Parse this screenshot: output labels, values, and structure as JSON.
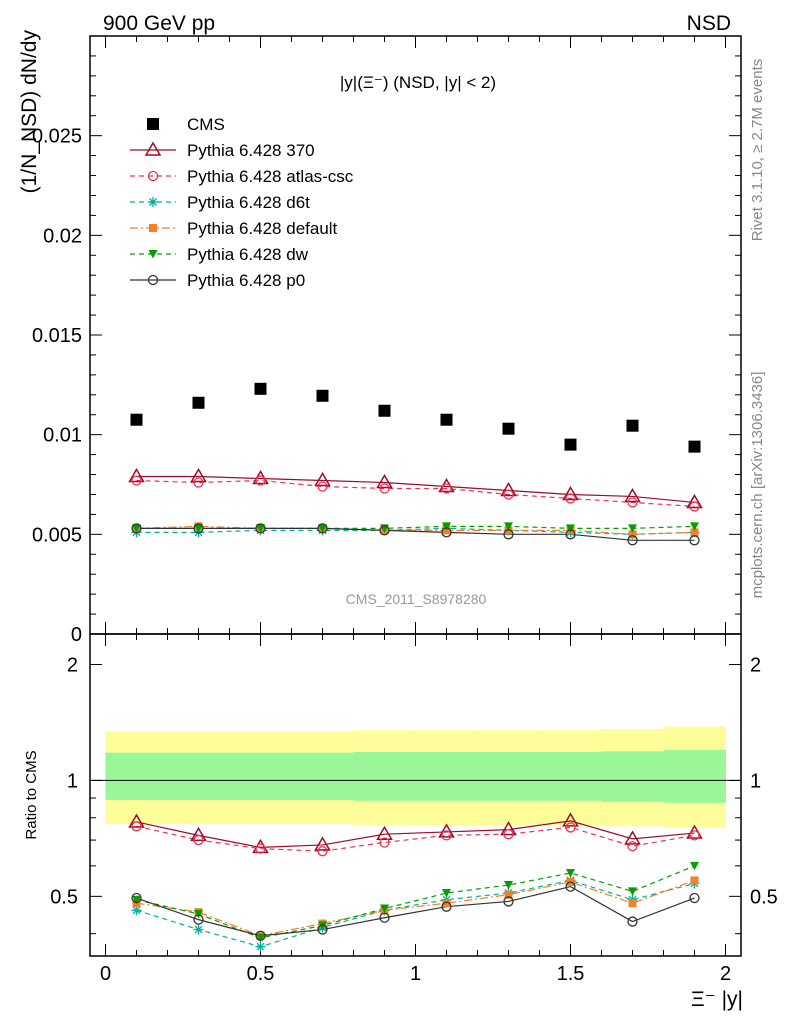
{
  "header": {
    "left_label": "900 GeV pp",
    "right_label": "NSD",
    "plot_title": "|y|(Ξ⁻) (NSD, |y| < 2)",
    "watermark": "CMS_2011_S8978280",
    "side_rivet": "Rivet 3.1.10, ≥ 2.7M events",
    "side_mcplots": "mcplots.cern.ch [arXiv:1306.3436]"
  },
  "axes": {
    "main_ylabel": "(1/N_NSD) dN/dy",
    "ratio_ylabel": "Ratio to CMS",
    "xlabel": "Ξ⁻ |y|",
    "main_yticks": [
      "0",
      "0.005",
      "0.01",
      "0.015",
      "0.02",
      "0.025"
    ],
    "ratio_yticks": [
      "0.5",
      "1",
      "2"
    ],
    "xticks": [
      "0",
      "0.5",
      "1",
      "1.5",
      "2"
    ]
  },
  "legend": [
    {
      "label": "CMS",
      "color": "#000000",
      "marker": "square-filled",
      "line": "none"
    },
    {
      "label": "Pythia 6.428 370",
      "color": "#9a0e2a",
      "marker": "triangle-open",
      "line": "solid"
    },
    {
      "label": "Pythia 6.428 atlas-csc",
      "color": "#ee3355",
      "marker": "circle-open",
      "line": "dashed"
    },
    {
      "label": "Pythia 6.428 d6t",
      "color": "#00b0a0",
      "marker": "asterisk",
      "line": "dashed"
    },
    {
      "label": "Pythia 6.428 default",
      "color": "#f58025",
      "marker": "square-filled",
      "line": "dashdot"
    },
    {
      "label": "Pythia 6.428 dw",
      "color": "#00a000",
      "marker": "triangle-down-filled",
      "line": "dashed"
    },
    {
      "label": "Pythia 6.428 p0",
      "color": "#333333",
      "marker": "circle-open",
      "line": "solid"
    }
  ],
  "chart_data": {
    "type": "scatter",
    "x": [
      0.1,
      0.3,
      0.5,
      0.7,
      0.9,
      1.1,
      1.3,
      1.5,
      1.7,
      1.9
    ],
    "xlim": [
      -0.05,
      2.05
    ],
    "main_ylim": [
      0,
      0.03
    ],
    "ratio_ylim": [
      0.35,
      2.4
    ],
    "ratio_scale": "log",
    "series": [
      {
        "name": "CMS",
        "values": [
          0.01075,
          0.0116,
          0.0123,
          0.01195,
          0.0112,
          0.01075,
          0.0103,
          0.0095,
          0.01045,
          0.0094
        ]
      },
      {
        "name": "Pythia 6.428 370",
        "values": [
          0.0079,
          0.0079,
          0.0078,
          0.0077,
          0.0076,
          0.0074,
          0.0072,
          0.007,
          0.0069,
          0.0066
        ]
      },
      {
        "name": "Pythia 6.428 atlas-csc",
        "values": [
          0.0077,
          0.0076,
          0.0077,
          0.0074,
          0.0073,
          0.0073,
          0.007,
          0.0068,
          0.0066,
          0.0064
        ]
      },
      {
        "name": "Pythia 6.428 d6t",
        "values": [
          0.0051,
          0.0051,
          0.0052,
          0.0052,
          0.0052,
          0.0053,
          0.0052,
          0.0051,
          0.005,
          0.0051
        ]
      },
      {
        "name": "Pythia 6.428 default",
        "values": [
          0.0053,
          0.0054,
          0.0053,
          0.0053,
          0.0052,
          0.0052,
          0.0052,
          0.0052,
          0.005,
          0.0051
        ]
      },
      {
        "name": "Pythia 6.428 dw",
        "values": [
          0.0053,
          0.0053,
          0.0053,
          0.0053,
          0.0053,
          0.0054,
          0.0054,
          0.0053,
          0.0053,
          0.0054
        ]
      },
      {
        "name": "Pythia 6.428 p0",
        "values": [
          0.0053,
          0.0053,
          0.0053,
          0.0053,
          0.0052,
          0.0051,
          0.005,
          0.005,
          0.0047,
          0.0047
        ]
      }
    ],
    "ratio_series": [
      {
        "name": "Pythia 6.428 370",
        "values": [
          0.78,
          0.72,
          0.67,
          0.68,
          0.725,
          0.735,
          0.745,
          0.785,
          0.705,
          0.73
        ]
      },
      {
        "name": "Pythia 6.428 atlas-csc",
        "values": [
          0.76,
          0.7,
          0.665,
          0.655,
          0.69,
          0.72,
          0.725,
          0.755,
          0.675,
          0.72
        ]
      },
      {
        "name": "Pythia 6.428 d6t",
        "values": [
          0.46,
          0.41,
          0.37,
          0.415,
          0.46,
          0.49,
          0.51,
          0.55,
          0.49,
          0.54
        ]
      },
      {
        "name": "Pythia 6.428 default",
        "values": [
          0.48,
          0.455,
          0.395,
          0.425,
          0.46,
          0.48,
          0.505,
          0.545,
          0.48,
          0.55
        ]
      },
      {
        "name": "Pythia 6.428 dw",
        "values": [
          0.49,
          0.45,
          0.39,
          0.42,
          0.465,
          0.51,
          0.535,
          0.575,
          0.515,
          0.6
        ]
      },
      {
        "name": "Pythia 6.428 p0",
        "values": [
          0.495,
          0.435,
          0.395,
          0.41,
          0.44,
          0.47,
          0.485,
          0.53,
          0.43,
          0.495
        ]
      }
    ],
    "uncertainty_bands": {
      "x_edges": [
        0.0,
        0.2,
        0.4,
        0.6,
        0.8,
        1.0,
        1.2,
        1.4,
        1.6,
        1.8,
        2.0
      ],
      "inner_lo": [
        0.89,
        0.89,
        0.89,
        0.89,
        0.885,
        0.885,
        0.885,
        0.885,
        0.88,
        0.875
      ],
      "inner_hi": [
        1.18,
        1.18,
        1.18,
        1.18,
        1.185,
        1.185,
        1.185,
        1.185,
        1.19,
        1.2
      ],
      "outer_lo": [
        0.77,
        0.77,
        0.77,
        0.77,
        0.765,
        0.765,
        0.765,
        0.765,
        0.76,
        0.755
      ],
      "outer_hi": [
        1.34,
        1.34,
        1.34,
        1.34,
        1.35,
        1.35,
        1.35,
        1.35,
        1.36,
        1.38
      ],
      "inner_color": "#99f799",
      "outer_color": "#fdfd99"
    }
  }
}
